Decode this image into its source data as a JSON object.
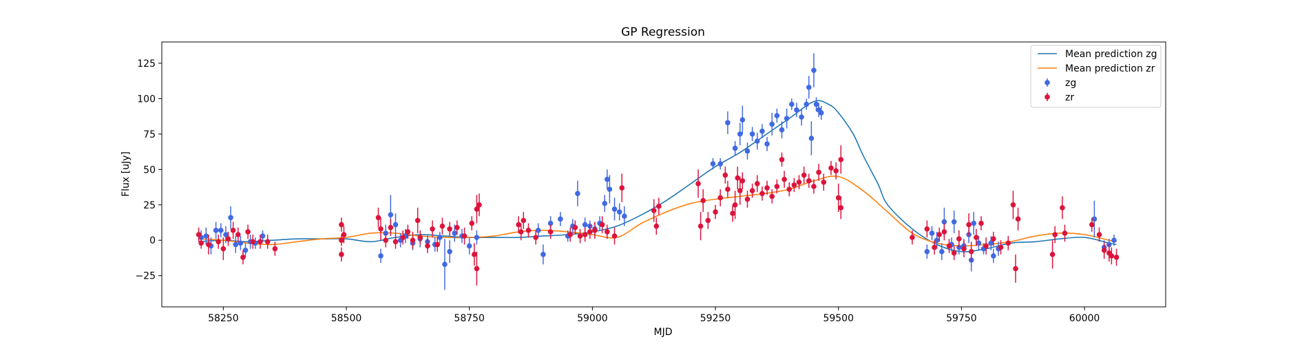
{
  "chart_data": {
    "type": "scatter",
    "title": "GP Regression",
    "xlabel": "MJD",
    "ylabel": "Flux [uJy]",
    "xlim": [
      58125,
      60165
    ],
    "ylim": [
      -47,
      140
    ],
    "grid": false,
    "legend_position": "top-right",
    "x_ticks": [
      58250,
      58500,
      58750,
      59000,
      59250,
      59500,
      59750,
      60000
    ],
    "y_ticks": [
      -25,
      0,
      25,
      50,
      75,
      100,
      125
    ],
    "colors": {
      "mean_zg": "#1f77b4",
      "mean_zr": "#ff7f0e",
      "zg": "#4169e1",
      "zr": "#dc143c"
    },
    "lines": [
      {
        "name": "Mean prediction zg",
        "x": [
          58200,
          58250,
          58300,
          58350,
          58400,
          58450,
          58500,
          58550,
          58600,
          58650,
          58700,
          58750,
          58800,
          58850,
          58900,
          58950,
          59000,
          59050,
          59100,
          59150,
          59200,
          59250,
          59300,
          59350,
          59400,
          59450,
          59480,
          59500,
          59530,
          59550,
          59580,
          59600,
          59650,
          59700,
          59750,
          59800,
          59850,
          59900,
          59950,
          60000,
          60050,
          60065
        ],
        "y": [
          -1,
          0,
          -1,
          0,
          1,
          1,
          1,
          -1,
          2,
          4,
          3,
          2,
          2,
          2,
          3,
          4,
          6,
          10,
          18,
          28,
          40,
          52,
          62,
          74,
          86,
          98,
          96,
          90,
          75,
          60,
          40,
          25,
          8,
          -3,
          -8,
          -6,
          -2,
          -1,
          1,
          2,
          -2,
          -3
        ]
      },
      {
        "name": "Mean prediction zr",
        "x": [
          58200,
          58250,
          58300,
          58350,
          58400,
          58450,
          58500,
          58550,
          58600,
          58650,
          58700,
          58750,
          58800,
          58850,
          58900,
          58950,
          59000,
          59050,
          59100,
          59150,
          59200,
          59250,
          59300,
          59350,
          59400,
          59450,
          59500,
          59550,
          59600,
          59650,
          59700,
          59750,
          59800,
          59850,
          59900,
          59950,
          60000,
          60050,
          60065
        ],
        "y": [
          1,
          0,
          -2,
          -3,
          -1,
          1,
          2,
          5,
          5,
          3,
          2,
          2,
          3,
          6,
          7,
          6,
          4,
          2,
          12,
          20,
          26,
          29,
          31,
          33,
          36,
          42,
          45,
          35,
          20,
          5,
          -2,
          -4,
          -3,
          -1,
          3,
          5,
          4,
          0,
          -1
        ]
      }
    ],
    "series": [
      {
        "name": "zg",
        "points": [
          [
            58205,
            2,
            5
          ],
          [
            58215,
            3,
            6
          ],
          [
            58225,
            -4,
            6
          ],
          [
            58235,
            7,
            6
          ],
          [
            58245,
            7,
            5
          ],
          [
            58255,
            4,
            6
          ],
          [
            58265,
            16,
            8
          ],
          [
            58275,
            -3,
            6
          ],
          [
            58285,
            -2,
            5
          ],
          [
            58295,
            -7,
            5
          ],
          [
            58305,
            -1,
            5
          ],
          [
            58315,
            -2,
            4
          ],
          [
            58330,
            3,
            4
          ],
          [
            58570,
            -11,
            5
          ],
          [
            58580,
            5,
            6
          ],
          [
            58590,
            18,
            14
          ],
          [
            58600,
            11,
            8
          ],
          [
            58610,
            0,
            5
          ],
          [
            58620,
            3,
            5
          ],
          [
            58635,
            -2,
            5
          ],
          [
            58650,
            1,
            6
          ],
          [
            58665,
            -1,
            5
          ],
          [
            58680,
            -3,
            5
          ],
          [
            58690,
            2,
            4
          ],
          [
            58700,
            -17,
            18
          ],
          [
            58710,
            -8,
            8
          ],
          [
            58720,
            5,
            6
          ],
          [
            58735,
            3,
            5
          ],
          [
            58750,
            -4,
            6
          ],
          [
            58765,
            2,
            5
          ],
          [
            58890,
            7,
            5
          ],
          [
            58900,
            -10,
            7
          ],
          [
            58915,
            12,
            5
          ],
          [
            58935,
            15,
            5
          ],
          [
            58950,
            3,
            4
          ],
          [
            58960,
            10,
            5
          ],
          [
            58970,
            33,
            9
          ],
          [
            58985,
            11,
            5
          ],
          [
            58995,
            10,
            4
          ],
          [
            59005,
            8,
            5
          ],
          [
            59015,
            12,
            5
          ],
          [
            59025,
            26,
            6
          ],
          [
            59030,
            43,
            7
          ],
          [
            59035,
            36,
            10
          ],
          [
            59045,
            22,
            8
          ],
          [
            59055,
            20,
            6
          ],
          [
            59065,
            17,
            7
          ],
          [
            59245,
            54,
            4
          ],
          [
            59260,
            54,
            4
          ],
          [
            59275,
            83,
            8
          ],
          [
            59290,
            65,
            5
          ],
          [
            59300,
            75,
            8
          ],
          [
            59305,
            85,
            10
          ],
          [
            59315,
            63,
            6
          ],
          [
            59325,
            75,
            5
          ],
          [
            59335,
            70,
            6
          ],
          [
            59345,
            77,
            5
          ],
          [
            59355,
            68,
            5
          ],
          [
            59365,
            82,
            8
          ],
          [
            59375,
            88,
            5
          ],
          [
            59385,
            78,
            6
          ],
          [
            59395,
            86,
            7
          ],
          [
            59405,
            96,
            4
          ],
          [
            59415,
            92,
            5
          ],
          [
            59425,
            87,
            6
          ],
          [
            59435,
            96,
            4
          ],
          [
            59440,
            108,
            8
          ],
          [
            59445,
            72,
            12
          ],
          [
            59450,
            120,
            12
          ],
          [
            59455,
            96,
            5
          ],
          [
            59460,
            92,
            5
          ],
          [
            59465,
            90,
            5
          ],
          [
            59680,
            -8,
            5
          ],
          [
            59690,
            5,
            5
          ],
          [
            59700,
            0,
            6
          ],
          [
            59710,
            -8,
            6
          ],
          [
            59715,
            13,
            10
          ],
          [
            59730,
            -3,
            5
          ],
          [
            59735,
            13,
            8
          ],
          [
            59745,
            -5,
            5
          ],
          [
            59755,
            -4,
            5
          ],
          [
            59765,
            4,
            6
          ],
          [
            59770,
            -14,
            8
          ],
          [
            59775,
            12,
            8
          ],
          [
            59785,
            -2,
            5
          ],
          [
            59795,
            -6,
            4
          ],
          [
            59810,
            -2,
            5
          ],
          [
            59815,
            -11,
            5
          ],
          [
            59825,
            -6,
            5
          ],
          [
            60020,
            15,
            13
          ],
          [
            60040,
            -5,
            5
          ],
          [
            60050,
            -3,
            4
          ],
          [
            60060,
            0,
            4
          ]
        ]
      },
      {
        "name": "zr",
        "points": [
          [
            58200,
            4,
            5
          ],
          [
            58205,
            -2,
            4
          ],
          [
            58220,
            -3,
            7
          ],
          [
            58240,
            -1,
            5
          ],
          [
            58250,
            -6,
            8
          ],
          [
            58260,
            1,
            5
          ],
          [
            58270,
            7,
            6
          ],
          [
            58280,
            4,
            5
          ],
          [
            58290,
            -12,
            5
          ],
          [
            58300,
            6,
            5
          ],
          [
            58310,
            -1,
            5
          ],
          [
            58325,
            -1,
            5
          ],
          [
            58340,
            -1,
            5
          ],
          [
            58355,
            -6,
            5
          ],
          [
            58490,
            11,
            5
          ],
          [
            58490,
            0,
            4
          ],
          [
            58490,
            -10,
            5
          ],
          [
            58495,
            4,
            6
          ],
          [
            58565,
            16,
            7
          ],
          [
            58570,
            8,
            8
          ],
          [
            58580,
            0,
            5
          ],
          [
            58590,
            9,
            6
          ],
          [
            58600,
            -1,
            5
          ],
          [
            58615,
            2,
            5
          ],
          [
            58625,
            6,
            5
          ],
          [
            58635,
            0,
            6
          ],
          [
            58645,
            14,
            9
          ],
          [
            58650,
            2,
            5
          ],
          [
            58665,
            -4,
            5
          ],
          [
            58675,
            8,
            6
          ],
          [
            58685,
            -3,
            5
          ],
          [
            58695,
            10,
            6
          ],
          [
            58710,
            8,
            5
          ],
          [
            58725,
            9,
            5
          ],
          [
            58740,
            3,
            6
          ],
          [
            58755,
            12,
            5
          ],
          [
            58760,
            -10,
            8
          ],
          [
            58765,
            22,
            10
          ],
          [
            58765,
            -20,
            12
          ],
          [
            58770,
            25,
            8
          ],
          [
            58850,
            11,
            6
          ],
          [
            58855,
            6,
            6
          ],
          [
            58860,
            14,
            6
          ],
          [
            58870,
            7,
            5
          ],
          [
            58885,
            2,
            5
          ],
          [
            58915,
            6,
            5
          ],
          [
            58955,
            4,
            5
          ],
          [
            58965,
            9,
            5
          ],
          [
            58975,
            3,
            5
          ],
          [
            58985,
            4,
            5
          ],
          [
            58995,
            6,
            5
          ],
          [
            59005,
            7,
            6
          ],
          [
            59020,
            11,
            6
          ],
          [
            59030,
            6,
            5
          ],
          [
            59045,
            3,
            6
          ],
          [
            59060,
            37,
            10
          ],
          [
            59125,
            21,
            8
          ],
          [
            59130,
            10,
            6
          ],
          [
            59135,
            24,
            6
          ],
          [
            59215,
            40,
            10
          ],
          [
            59220,
            10,
            10
          ],
          [
            59225,
            28,
            8
          ],
          [
            59235,
            14,
            6
          ],
          [
            59250,
            20,
            5
          ],
          [
            59260,
            30,
            6
          ],
          [
            59270,
            46,
            6
          ],
          [
            59275,
            36,
            6
          ],
          [
            59285,
            19,
            6
          ],
          [
            59290,
            25,
            10
          ],
          [
            59295,
            44,
            8
          ],
          [
            59300,
            35,
            10
          ],
          [
            59305,
            42,
            6
          ],
          [
            59315,
            29,
            6
          ],
          [
            59325,
            35,
            5
          ],
          [
            59335,
            40,
            6
          ],
          [
            59345,
            33,
            5
          ],
          [
            59355,
            37,
            5
          ],
          [
            59365,
            31,
            5
          ],
          [
            59375,
            38,
            5
          ],
          [
            59385,
            57,
            5
          ],
          [
            59390,
            43,
            6
          ],
          [
            59400,
            36,
            5
          ],
          [
            59410,
            39,
            5
          ],
          [
            59420,
            41,
            5
          ],
          [
            59430,
            46,
            6
          ],
          [
            59440,
            42,
            5
          ],
          [
            59450,
            38,
            5
          ],
          [
            59460,
            48,
            6
          ],
          [
            59470,
            41,
            6
          ],
          [
            59485,
            51,
            5
          ],
          [
            59495,
            49,
            6
          ],
          [
            59500,
            30,
            10
          ],
          [
            59505,
            23,
            8
          ],
          [
            59505,
            57,
            10
          ],
          [
            59650,
            2,
            5
          ],
          [
            59680,
            8,
            6
          ],
          [
            59695,
            -5,
            5
          ],
          [
            59705,
            4,
            5
          ],
          [
            59715,
            6,
            6
          ],
          [
            59725,
            -4,
            5
          ],
          [
            59735,
            -9,
            5
          ],
          [
            59745,
            1,
            6
          ],
          [
            59755,
            -6,
            6
          ],
          [
            59765,
            11,
            8
          ],
          [
            59770,
            -8,
            7
          ],
          [
            59780,
            2,
            6
          ],
          [
            59790,
            12,
            5
          ],
          [
            59800,
            -4,
            6
          ],
          [
            59815,
            1,
            5
          ],
          [
            59830,
            -5,
            5
          ],
          [
            59845,
            -2,
            5
          ],
          [
            59855,
            25,
            10
          ],
          [
            59860,
            -20,
            10
          ],
          [
            59865,
            15,
            8
          ],
          [
            59935,
            -10,
            10
          ],
          [
            59940,
            4,
            6
          ],
          [
            59955,
            23,
            8
          ],
          [
            59960,
            5,
            6
          ],
          [
            60015,
            11,
            5
          ],
          [
            60030,
            4,
            5
          ],
          [
            60040,
            -7,
            6
          ],
          [
            60050,
            -9,
            6
          ],
          [
            60055,
            -11,
            6
          ],
          [
            60065,
            -12,
            6
          ]
        ]
      }
    ]
  }
}
